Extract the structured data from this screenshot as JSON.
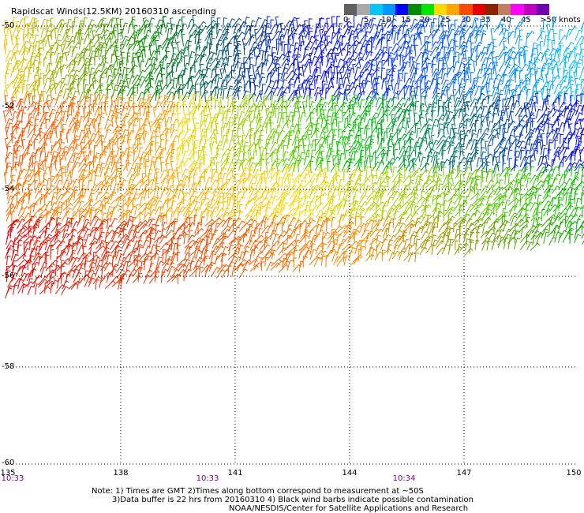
{
  "title": "Rapidscat Winds(12.5KM) 20160310 ascending",
  "legend": {
    "colors": [
      "#606060",
      "#a9a9a9",
      "#00c8ff",
      "#0096ff",
      "#0000ff",
      "#008c00",
      "#00e600",
      "#ffd800",
      "#ffa500",
      "#ff4b00",
      "#e60000",
      "#8b2500",
      "#c08060",
      "#ff00ff",
      "#c000c0",
      "#7000b0"
    ],
    "labels": [
      "0",
      "5",
      "10",
      "15",
      "20",
      "25",
      "30",
      "35",
      "40",
      "45",
      ">50 knots"
    ]
  },
  "y_axis": {
    "labels": [
      "-50",
      "-52",
      "-54",
      "-56",
      "-58",
      "-60"
    ]
  },
  "x_axis": {
    "labels": [
      "135",
      "138",
      "141",
      "144",
      "147",
      "150"
    ]
  },
  "time_labels": [
    "10:33",
    "10:33",
    "10:34"
  ],
  "notes": [
    "Note: 1) Times are GMT 2)Times along bottom correspond to measurement at ~50S",
    "3)Data buffer is 22 hrs from 20160310 4) Black wind barbs indicate possible contamination",
    "NOAA/NESDIS/Center for Satellite Applications and Research"
  ]
}
